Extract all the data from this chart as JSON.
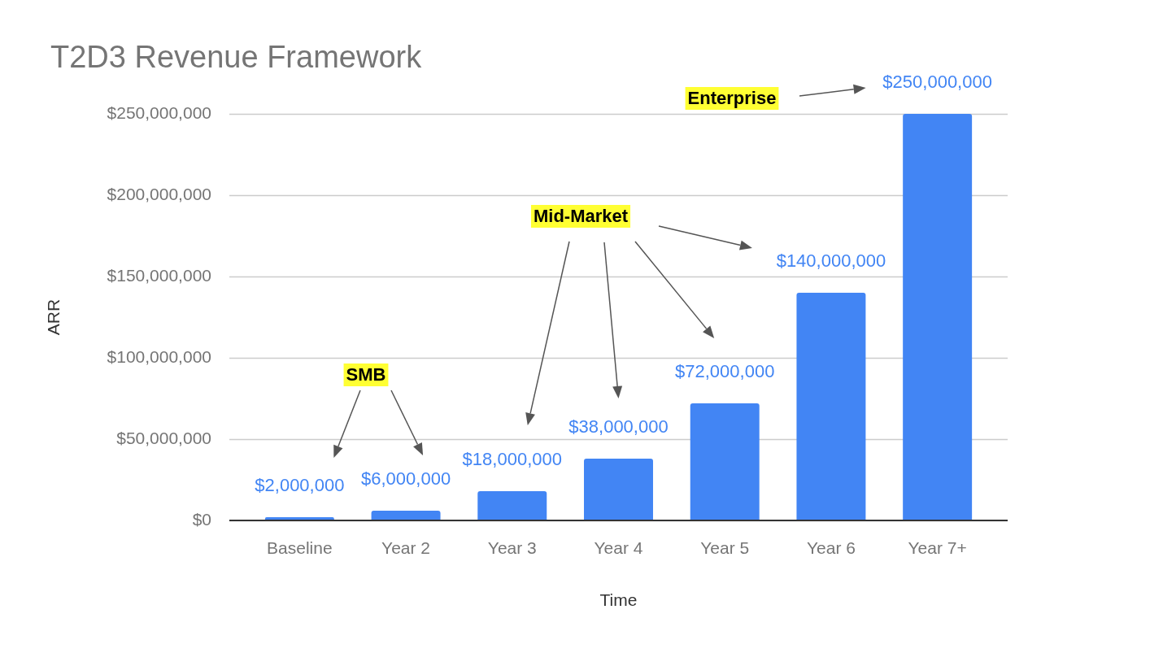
{
  "chart_data": {
    "type": "bar",
    "title": "T2D3 Revenue Framework",
    "xlabel": "Time",
    "ylabel": "ARR",
    "categories": [
      "Baseline",
      "Year 2",
      "Year 3",
      "Year 4",
      "Year 5",
      "Year 6",
      "Year 7+"
    ],
    "values": [
      2000000,
      6000000,
      18000000,
      38000000,
      72000000,
      140000000,
      250000000
    ],
    "color": "#4285f4",
    "value_labels": [
      "$2,000,000",
      "$6,000,000",
      "$18,000,000",
      "$38,000,000",
      "$72,000,000",
      "$140,000,000",
      "$250,000,000"
    ],
    "ylim": [
      0,
      250000000
    ],
    "yticks": [
      {
        "value": 0,
        "label": "$0"
      },
      {
        "value": 50000000,
        "label": "$50,000,000"
      },
      {
        "value": 100000000,
        "label": "$100,000,000"
      },
      {
        "value": 150000000,
        "label": "$150,000,000"
      },
      {
        "value": 200000000,
        "label": "$200,000,000"
      },
      {
        "value": 250000000,
        "label": "$250,000,000"
      }
    ],
    "grid": "y",
    "annotations": [
      "SMB",
      "Mid-Market",
      "Enterprise"
    ]
  }
}
